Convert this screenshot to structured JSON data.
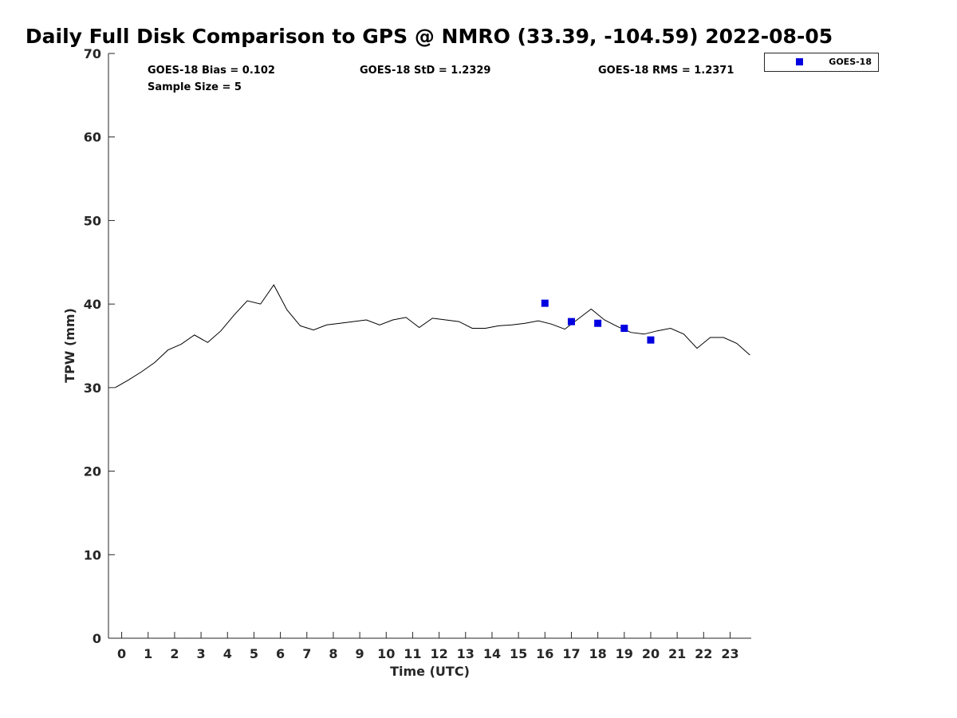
{
  "chart_data": {
    "type": "line",
    "title": "Daily Full Disk Comparison to GPS @ NMRO (33.39, -104.59) 2022-08-05",
    "xlabel": "Time (UTC)",
    "ylabel": "TPW (mm)",
    "xlim": [
      -0.5,
      23.8
    ],
    "ylim": [
      0,
      70
    ],
    "x_ticks": [
      0,
      1,
      2,
      3,
      4,
      5,
      6,
      7,
      8,
      9,
      10,
      11,
      12,
      13,
      14,
      15,
      16,
      17,
      18,
      19,
      20,
      21,
      22,
      23
    ],
    "y_ticks": [
      0,
      10,
      20,
      30,
      40,
      50,
      60,
      70
    ],
    "grid": false,
    "legend_position": "top-right",
    "stats": {
      "bias": "GOES-18 Bias = 0.102",
      "std": "GOES-18 StD = 1.2329",
      "rms": "GOES-18 RMS = 1.2371",
      "sample": "Sample Size = 5"
    },
    "series": [
      {
        "kind": "line",
        "color": "#000000",
        "x": [
          -0.25,
          0.25,
          0.75,
          1.25,
          1.75,
          2.25,
          2.75,
          3.25,
          3.75,
          4.25,
          4.75,
          5.25,
          5.75,
          6.25,
          6.75,
          7.25,
          7.75,
          8.25,
          8.75,
          9.25,
          9.75,
          10.25,
          10.75,
          11.25,
          11.75,
          12.25,
          12.75,
          13.25,
          13.75,
          14.25,
          14.75,
          15.25,
          15.75,
          16.25,
          16.75,
          17.25,
          17.75,
          18.25,
          18.75,
          19.25,
          19.75,
          20.25,
          20.75,
          21.25,
          21.75,
          22.25,
          22.75,
          23.25,
          23.75
        ],
        "values": [
          30.0,
          30.9,
          31.9,
          33.0,
          34.5,
          35.2,
          36.3,
          35.4,
          36.8,
          38.7,
          40.4,
          40.0,
          42.3,
          39.3,
          37.4,
          36.9,
          37.5,
          37.7,
          37.9,
          38.1,
          37.5,
          38.1,
          38.4,
          37.2,
          38.3,
          38.1,
          37.9,
          37.1,
          37.1,
          37.4,
          37.5,
          37.7,
          38.0,
          37.6,
          37.0,
          38.2,
          39.4,
          38.1,
          37.3,
          36.6,
          36.4,
          36.8,
          37.1,
          36.4,
          34.7,
          36.0,
          36.0,
          35.3,
          33.9
        ]
      },
      {
        "kind": "scatter",
        "name": "GOES-18",
        "color": "#0000e0",
        "marker": "square",
        "x": [
          16,
          17,
          18,
          19,
          20
        ],
        "values": [
          40.1,
          37.9,
          37.7,
          37.1,
          35.7
        ]
      }
    ]
  }
}
